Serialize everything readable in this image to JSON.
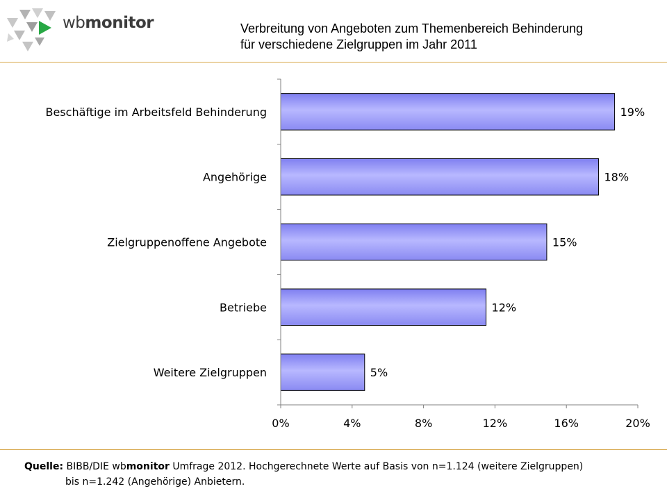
{
  "header": {
    "logo": {
      "text_light": "wb",
      "text_bold": "monitor"
    },
    "title_line1": "Verbreitung  von Angeboten  zum  Themenbereich  Behinderung",
    "title_line2": "für verschiedene Zielgruppen  im Jahr 2011"
  },
  "colors": {
    "divider": "#d7a74a",
    "bar_fill_top": "#8f8ff5",
    "bar_fill_mid": "#b8b8ff",
    "bar_stroke": "#000000",
    "logo_green": "#27a844",
    "logo_grey": "#b3b3b3"
  },
  "chart_data": {
    "type": "bar",
    "orientation": "horizontal",
    "title": "Verbreitung von Angeboten zum Themenbereich Behinderung für verschiedene Zielgruppen im Jahr 2011",
    "categories": [
      "Beschäftige im Arbeitsfeld Behinderung",
      "Angehörige",
      "Zielgruppenoffene Angebote",
      "Betriebe",
      "Weitere Zielgruppen"
    ],
    "values": [
      18.7,
      17.8,
      14.9,
      11.5,
      4.7
    ],
    "value_labels": [
      "19%",
      "18%",
      "15%",
      "12%",
      "5%"
    ],
    "xlim": [
      0,
      20
    ],
    "x_ticks": [
      0,
      4,
      8,
      12,
      16,
      20
    ],
    "x_tick_labels": [
      "0%",
      "4%",
      "8%",
      "12%",
      "16%",
      "20%"
    ],
    "xlabel": "",
    "ylabel": "",
    "grid": false,
    "legend": "none"
  },
  "footer": {
    "source_label": "Quelle:",
    "source_prefix": "BIBB/DIE wb",
    "source_bold": "monitor",
    "source_rest": " Umfrage 2012. Hochgerechnete Werte auf Basis von n=1.124 (weitere Zielgruppen)",
    "source_line2": "bis n=1.242 (Angehörige) Anbietern."
  }
}
